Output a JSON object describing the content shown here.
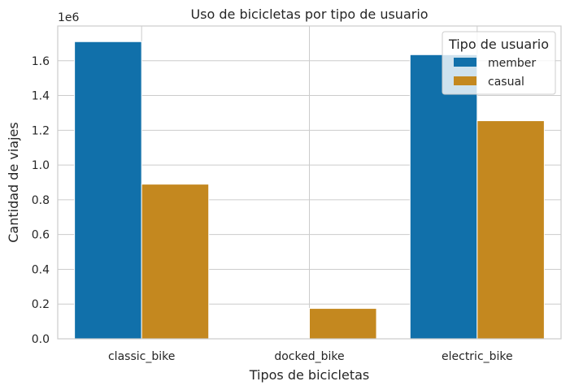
{
  "chart_data": {
    "type": "bar",
    "title": "Uso de bicicletas por tipo de usuario",
    "xlabel": "Tipos de bicicletas",
    "ylabel": "Cantidad de viajes",
    "y_multiplier_label": "1e6",
    "ylim": [
      0,
      1.8
    ],
    "yticks": [
      0.0,
      0.2,
      0.4,
      0.6,
      0.8,
      1.0,
      1.2,
      1.4,
      1.6
    ],
    "ytick_labels": [
      "0.0",
      "0.2",
      "0.4",
      "0.6",
      "0.8",
      "1.0",
      "1.2",
      "1.4",
      "1.6"
    ],
    "categories": [
      "classic_bike",
      "docked_bike",
      "electric_bike"
    ],
    "series": [
      {
        "name": "member",
        "color": "#1170aa",
        "values": [
          1.71,
          0.0,
          1.635
        ]
      },
      {
        "name": "casual",
        "color": "#c4881f",
        "values": [
          0.89,
          0.175,
          1.255
        ]
      }
    ],
    "grid": true,
    "legend": {
      "title": "Tipo de usuario",
      "placement": "top-right"
    }
  }
}
